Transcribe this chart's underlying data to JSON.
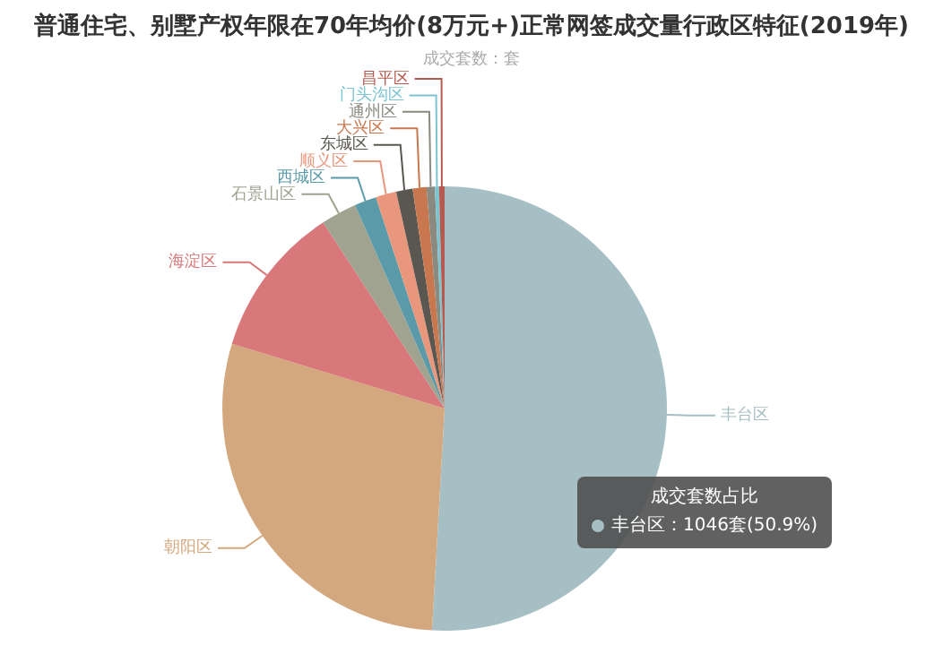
{
  "chart_data": {
    "type": "pie",
    "title": "普通住宅、别墅产权年限在70年均价(8万元+)正常网签成交量行政区特征(2019年)",
    "subtitle": "成交套数：套",
    "categories": [
      "丰台区",
      "朝阳区",
      "海淀区",
      "石景山区",
      "西城区",
      "顺义区",
      "东城区",
      "大兴区",
      "通州区",
      "门头沟区",
      "昌平区"
    ],
    "values": [
      50.9,
      28.8,
      11.1,
      2.6,
      1.6,
      1.5,
      1.2,
      1.0,
      0.6,
      0.3,
      0.4
    ],
    "colors": [
      "#a5bfc4",
      "#d4a87e",
      "#d9787a",
      "#9fa38f",
      "#5b9aa8",
      "#e8967c",
      "#5a5750",
      "#c8774f",
      "#8a8a80",
      "#7cc4cf",
      "#b55a50"
    ],
    "annotations": [
      "成交套数占比",
      "丰台区：1046套(50.9%)"
    ],
    "legend": false
  }
}
